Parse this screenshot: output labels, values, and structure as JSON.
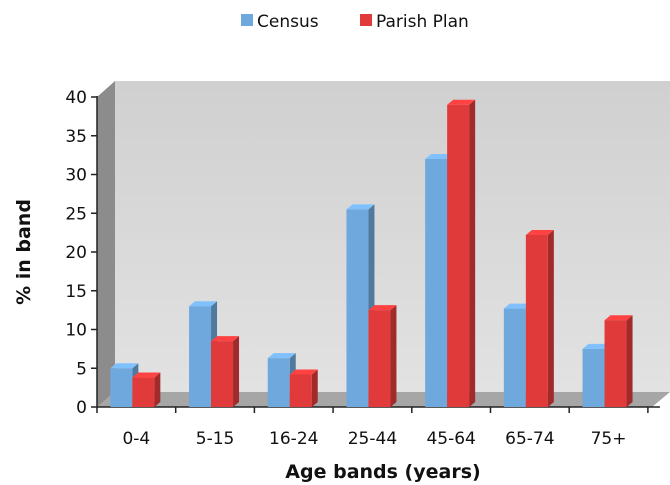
{
  "chart_data": {
    "type": "bar",
    "categories": [
      "0-4",
      "5-15",
      "16-24",
      "25-44",
      "45-64",
      "65-74",
      "75+"
    ],
    "series": [
      {
        "name": "Census",
        "values": [
          5,
          13,
          6.3,
          25.5,
          32,
          12.7,
          7.5
        ],
        "color": "#6fa8dc"
      },
      {
        "name": "Parish Plan",
        "values": [
          3.8,
          8.5,
          4.2,
          12.5,
          39,
          22.2,
          11.2
        ],
        "color": "#e03a3a"
      }
    ],
    "xlabel": "Age bands (years)",
    "ylabel": "% in band",
    "ylim": [
      0,
      40
    ],
    "yticks": [
      0,
      5,
      10,
      15,
      20,
      25,
      30,
      35,
      40
    ],
    "legend_position": "top",
    "grid": false,
    "style": "3d-bar"
  }
}
